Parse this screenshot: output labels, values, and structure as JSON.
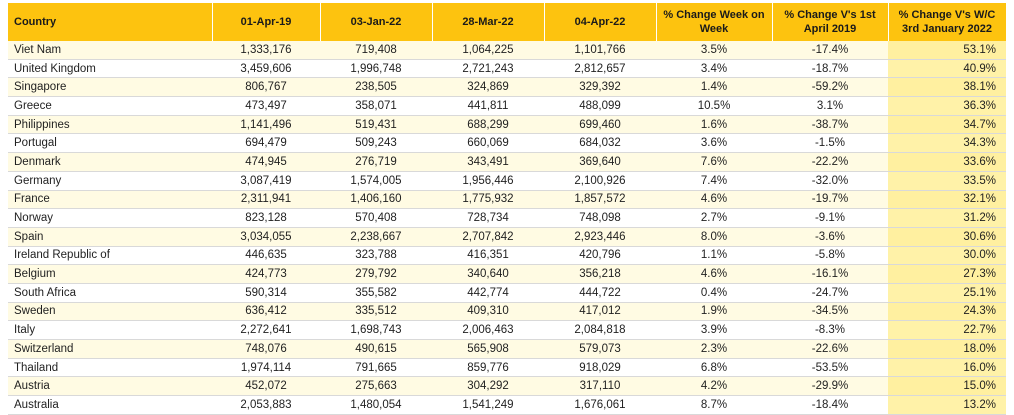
{
  "table": {
    "headers": [
      "Country",
      "01-Apr-19",
      "03-Jan-22",
      "28-Mar-22",
      "04-Apr-22",
      "% Change Week on Week",
      "% Change V's 1st April 2019",
      "% Change V's W/C 3rd January 2022"
    ],
    "rows": [
      [
        "Viet Nam",
        "1,333,176",
        "719,408",
        "1,064,225",
        "1,101,766",
        "3.5%",
        "-17.4%",
        "53.1%"
      ],
      [
        "United Kingdom",
        "3,459,606",
        "1,996,748",
        "2,721,243",
        "2,812,657",
        "3.4%",
        "-18.7%",
        "40.9%"
      ],
      [
        "Singapore",
        "806,767",
        "238,505",
        "324,869",
        "329,392",
        "1.4%",
        "-59.2%",
        "38.1%"
      ],
      [
        "Greece",
        "473,497",
        "358,071",
        "441,811",
        "488,099",
        "10.5%",
        "3.1%",
        "36.3%"
      ],
      [
        "Philippines",
        "1,141,496",
        "519,431",
        "688,299",
        "699,460",
        "1.6%",
        "-38.7%",
        "34.7%"
      ],
      [
        "Portugal",
        "694,479",
        "509,243",
        "660,069",
        "684,032",
        "3.6%",
        "-1.5%",
        "34.3%"
      ],
      [
        "Denmark",
        "474,945",
        "276,719",
        "343,491",
        "369,640",
        "7.6%",
        "-22.2%",
        "33.6%"
      ],
      [
        "Germany",
        "3,087,419",
        "1,574,005",
        "1,956,446",
        "2,100,926",
        "7.4%",
        "-32.0%",
        "33.5%"
      ],
      [
        "France",
        "2,311,941",
        "1,406,160",
        "1,775,932",
        "1,857,572",
        "4.6%",
        "-19.7%",
        "32.1%"
      ],
      [
        "Norway",
        "823,128",
        "570,408",
        "728,734",
        "748,098",
        "2.7%",
        "-9.1%",
        "31.2%"
      ],
      [
        "Spain",
        "3,034,055",
        "2,238,667",
        "2,707,842",
        "2,923,446",
        "8.0%",
        "-3.6%",
        "30.6%"
      ],
      [
        "Ireland Republic of",
        "446,635",
        "323,788",
        "416,351",
        "420,796",
        "1.1%",
        "-5.8%",
        "30.0%"
      ],
      [
        "Belgium",
        "424,773",
        "279,792",
        "340,640",
        "356,218",
        "4.6%",
        "-16.1%",
        "27.3%"
      ],
      [
        "South Africa",
        "590,314",
        "355,582",
        "442,774",
        "444,722",
        "0.4%",
        "-24.7%",
        "25.1%"
      ],
      [
        "Sweden",
        "636,412",
        "335,512",
        "409,310",
        "417,012",
        "1.9%",
        "-34.5%",
        "24.3%"
      ],
      [
        "Italy",
        "2,272,641",
        "1,698,743",
        "2,006,463",
        "2,084,818",
        "3.9%",
        "-8.3%",
        "22.7%"
      ],
      [
        "Switzerland",
        "748,076",
        "490,615",
        "565,908",
        "579,073",
        "2.3%",
        "-22.6%",
        "18.0%"
      ],
      [
        "Thailand",
        "1,974,114",
        "791,665",
        "859,776",
        "918,029",
        "6.8%",
        "-53.5%",
        "16.0%"
      ],
      [
        "Austria",
        "452,072",
        "275,663",
        "304,292",
        "317,110",
        "4.2%",
        "-29.9%",
        "15.0%"
      ],
      [
        "Australia",
        "2,053,883",
        "1,480,054",
        "1,541,249",
        "1,676,061",
        "8.7%",
        "-18.4%",
        "13.2%"
      ]
    ]
  },
  "colors": {
    "header_bg": "#fdc30f",
    "row_alt_bg": "#fffbe3",
    "last_col_bg": "#fff2a8"
  }
}
